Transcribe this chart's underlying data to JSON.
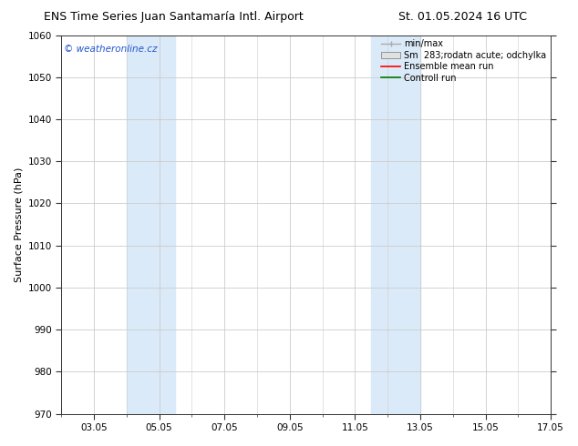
{
  "title_left": "ENS Time Series Juan Santamaría Intl. Airport",
  "title_right": "St. 01.05.2024 16 UTC",
  "ylabel": "Surface Pressure (hPa)",
  "ylim": [
    970,
    1060
  ],
  "yticks": [
    970,
    980,
    990,
    1000,
    1010,
    1020,
    1030,
    1040,
    1050,
    1060
  ],
  "xlim": [
    2.0,
    17.0
  ],
  "xtick_labels": [
    "03.05",
    "05.05",
    "07.05",
    "09.05",
    "11.05",
    "13.05",
    "15.05",
    "17.05"
  ],
  "xtick_positions": [
    3,
    5,
    7,
    9,
    11,
    13,
    15,
    17
  ],
  "copyright_text": "© weatheronline.cz",
  "legend_entries": [
    "min/max",
    "Sm  283;rodatn acute; odchylka",
    "Ensemble mean run",
    "Controll run"
  ],
  "shade_regions": [
    {
      "x_start": 4.0,
      "x_end": 5.5
    },
    {
      "x_start": 11.5,
      "x_end": 13.0
    }
  ],
  "bg_color": "#ffffff",
  "shade_color": "#daeaf8",
  "grid_color": "#cccccc",
  "ensemble_mean_color": "#ff0000",
  "control_run_color": "#007700",
  "minmax_color": "#aaaaaa",
  "spread_color": "#cccccc",
  "title_fontsize": 9,
  "tick_fontsize": 7.5,
  "ylabel_fontsize": 8
}
